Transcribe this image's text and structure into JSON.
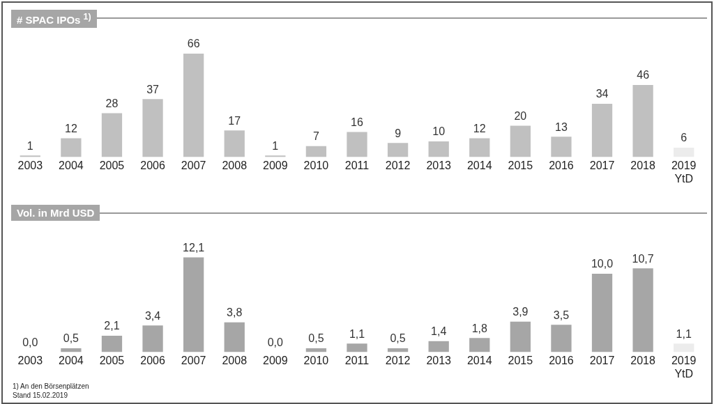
{
  "chart_data": [
    {
      "type": "bar",
      "title": "# SPAC IPOs $^{1)}$",
      "categories": [
        "2003",
        "2004",
        "2005",
        "2006",
        "2007",
        "2008",
        "2009",
        "2010",
        "2011",
        "2012",
        "2013",
        "2014",
        "2015",
        "2016",
        "2017",
        "2018",
        "2019 YtD"
      ],
      "values": [
        1,
        12,
        28,
        37,
        66,
        17,
        1,
        7,
        16,
        9,
        10,
        12,
        20,
        13,
        34,
        46,
        6
      ],
      "colors": [
        "#c0c0c0",
        "#c0c0c0",
        "#c0c0c0",
        "#c0c0c0",
        "#c0c0c0",
        "#c0c0c0",
        "#c0c0c0",
        "#c0c0c0",
        "#c0c0c0",
        "#c0c0c0",
        "#c0c0c0",
        "#c0c0c0",
        "#c0c0c0",
        "#c0c0c0",
        "#c0c0c0",
        "#c0c0c0",
        "#ececec"
      ],
      "data_labels": true,
      "grid": false,
      "legend": false
    },
    {
      "type": "bar",
      "title": "Vol. in Mrd USD",
      "categories": [
        "2003",
        "2004",
        "2005",
        "2006",
        "2007",
        "2008",
        "2009",
        "2010",
        "2011",
        "2012",
        "2013",
        "2014",
        "2015",
        "2016",
        "2017",
        "2018",
        "2019 YtD"
      ],
      "values": [
        0,
        0.5,
        2.1,
        3.4,
        12.1,
        3.8,
        0,
        0.5,
        1.1,
        0.5,
        1.4,
        1.8,
        3.9,
        3.5,
        10.0,
        10.7,
        1.1
      ],
      "value_labels": [
        "0,0",
        "0,5",
        "2,1",
        "3,4",
        "12,1",
        "3,8",
        "0,0",
        "0,5",
        "1,1",
        "0,5",
        "1,4",
        "1,8",
        "3,9",
        "3,5",
        "10,0",
        "10,7",
        "1,1"
      ],
      "colors": [
        "#a6a6a6",
        "#a6a6a6",
        "#a6a6a6",
        "#a6a6a6",
        "#a6a6a6",
        "#a6a6a6",
        "#a6a6a6",
        "#a6a6a6",
        "#a6a6a6",
        "#a6a6a6",
        "#a6a6a6",
        "#a6a6a6",
        "#a6a6a6",
        "#a6a6a6",
        "#a6a6a6",
        "#a6a6a6",
        "#ececec"
      ],
      "grid": false,
      "legend": false,
      "annotations": [
        "1) An den Börsenplätzen",
        "Stand 15.02.2019"
      ]
    }
  ]
}
